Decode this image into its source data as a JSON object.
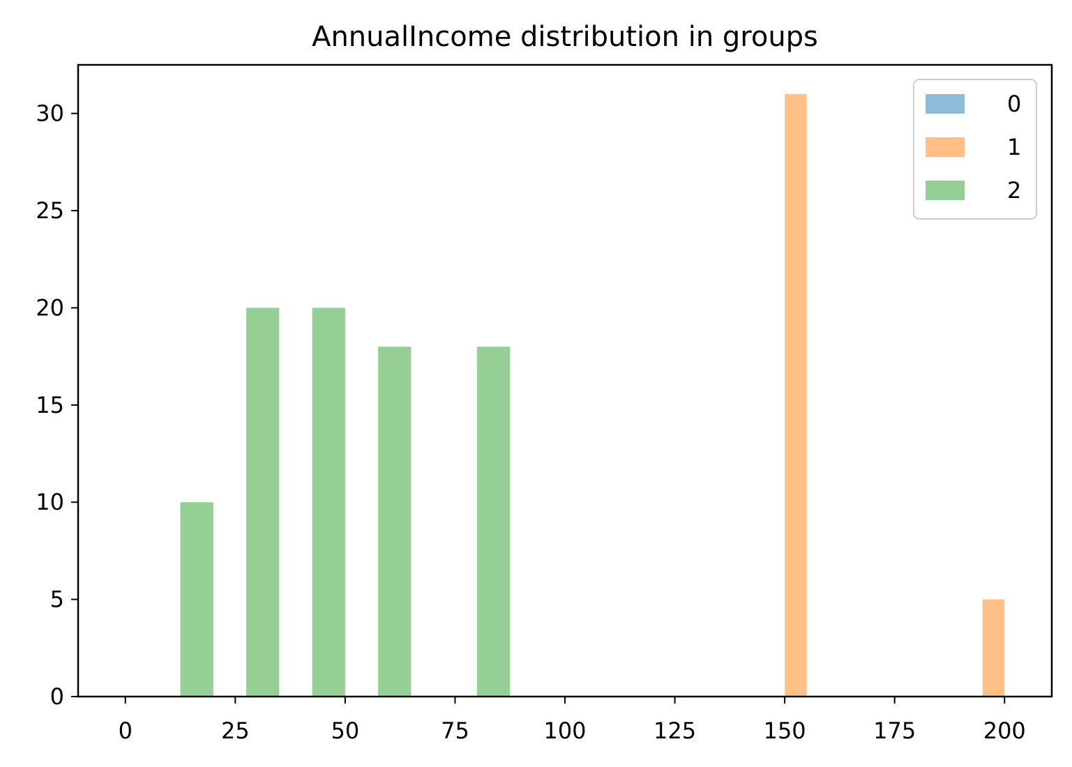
{
  "chart_data": {
    "type": "bar",
    "title": "AnnualIncome distribution in groups",
    "xlabel": "",
    "ylabel": "",
    "xlim": [
      -10.75,
      210.75
    ],
    "ylim": [
      0,
      32.5
    ],
    "x_ticks": [
      0,
      25,
      50,
      75,
      100,
      125,
      150,
      175,
      200
    ],
    "y_ticks": [
      0,
      5,
      10,
      15,
      20,
      25,
      30
    ],
    "legend_position": "top-right",
    "grid": false,
    "series": [
      {
        "name": "0",
        "color": "#1f77b4",
        "opacity": 0.5,
        "bars": []
      },
      {
        "name": "1",
        "color": "#ff7f0e",
        "opacity": 0.5,
        "bars": [
          {
            "x0": 150,
            "x1": 155,
            "value": 31
          },
          {
            "x0": 195,
            "x1": 200,
            "value": 5
          }
        ]
      },
      {
        "name": "2",
        "color": "#2ca02c",
        "opacity": 0.5,
        "bars": [
          {
            "x0": 12.5,
            "x1": 20,
            "value": 10
          },
          {
            "x0": 27.5,
            "x1": 35,
            "value": 20
          },
          {
            "x0": 42.5,
            "x1": 50,
            "value": 20
          },
          {
            "x0": 57.5,
            "x1": 65,
            "value": 18
          },
          {
            "x0": 80,
            "x1": 87.5,
            "value": 18
          }
        ]
      }
    ]
  }
}
